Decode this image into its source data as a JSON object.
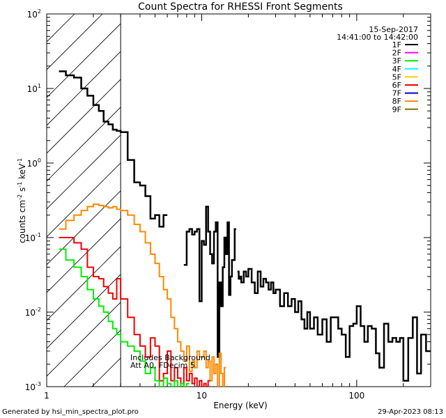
{
  "chart_data": {
    "type": "line",
    "title": "Count Spectra for RHESSI Front Segments",
    "xlabel": "Energy (keV)",
    "ylabel": "counts cm",
    "ylabel_sup1": "-2",
    "ylabel_mid": " s",
    "ylabel_sup2": "-1",
    "ylabel_end": " keV",
    "ylabel_sup3": "-1",
    "xscale": "log",
    "yscale": "log",
    "xlim": [
      1,
      300
    ],
    "ylim": [
      0.001,
      100
    ],
    "x_ticks": [
      {
        "value": 1,
        "label": "1"
      },
      {
        "value": 10,
        "label": "10"
      },
      {
        "value": 100,
        "label": "100"
      }
    ],
    "y_ticks": [
      {
        "value": 0.001,
        "base": "10",
        "exp": "-3"
      },
      {
        "value": 0.01,
        "base": "10",
        "exp": "-2"
      },
      {
        "value": 0.1,
        "base": "10",
        "exp": "-1"
      },
      {
        "value": 1,
        "base": "10",
        "exp": "0"
      },
      {
        "value": 10,
        "base": "10",
        "exp": "1"
      },
      {
        "value": 100,
        "base": "10",
        "exp": "2"
      }
    ],
    "date": "15-Sep-2017",
    "time_range": "14:41:00 to 14:42:00",
    "hatched_region": [
      1,
      3
    ],
    "annotation_lines": [
      "Includes Background",
      "Att A0, FDecim 5"
    ],
    "legend": [
      {
        "name": "1F",
        "color": "#000000"
      },
      {
        "name": "2F",
        "color": "#ff00ff"
      },
      {
        "name": "3F",
        "color": "#00ee00"
      },
      {
        "name": "4F",
        "color": "#00ffff"
      },
      {
        "name": "5F",
        "color": "#ffcc00"
      },
      {
        "name": "6F",
        "color": "#ee0000"
      },
      {
        "name": "7F",
        "color": "#0000dd"
      },
      {
        "name": "8F",
        "color": "#ff8800"
      },
      {
        "name": "9F",
        "color": "#777700"
      }
    ],
    "series": [
      {
        "name": "1F",
        "color": "#000000",
        "width": 2.5,
        "steps": [
          [
            1.2,
            1.33,
            17
          ],
          [
            1.33,
            1.5,
            15
          ],
          [
            1.5,
            1.67,
            14
          ],
          [
            1.67,
            1.83,
            10
          ],
          [
            1.83,
            2.0,
            8
          ],
          [
            2.0,
            2.17,
            6
          ],
          [
            2.17,
            2.33,
            5
          ],
          [
            2.33,
            2.5,
            3.6
          ],
          [
            2.5,
            2.67,
            3.3
          ],
          [
            2.67,
            2.83,
            2.8
          ],
          [
            2.83,
            3.0,
            2.7
          ],
          [
            3.0,
            3.33,
            2.6
          ],
          [
            3.33,
            3.67,
            1.1
          ],
          [
            3.67,
            4.0,
            0.55
          ],
          [
            4.0,
            4.33,
            0.5
          ],
          [
            4.33,
            4.67,
            0.36
          ],
          [
            4.67,
            5.0,
            0.18
          ],
          [
            5.0,
            5.33,
            0.2
          ],
          [
            5.33,
            5.67,
            0.14
          ],
          [
            5.67,
            6.0,
            0.2
          ],
          [
            7.67,
            8.0,
            0.043
          ],
          [
            8.0,
            8.33,
            0.12
          ],
          [
            8.33,
            8.67,
            0.13
          ],
          [
            8.67,
            9.0,
            0.11
          ],
          [
            9.0,
            9.33,
            0.12
          ],
          [
            9.33,
            9.67,
            0.13
          ],
          [
            9.67,
            10.0,
            0.014
          ],
          [
            10.0,
            10.33,
            0.09
          ],
          [
            10.33,
            10.67,
            0.08
          ],
          [
            10.67,
            11.0,
            0.26
          ],
          [
            11.0,
            11.33,
            0.12
          ],
          [
            11.33,
            11.67,
            0.06
          ],
          [
            11.67,
            12.0,
            0.045
          ],
          [
            12.0,
            12.33,
            0.12
          ],
          [
            12.33,
            12.67,
            0.16
          ],
          [
            12.67,
            13.0,
            0.0025
          ],
          [
            13.0,
            13.33,
            0.025
          ],
          [
            13.33,
            13.67,
            0.012
          ],
          [
            13.67,
            14.0,
            0.04
          ],
          [
            14.0,
            14.33,
            0.1
          ],
          [
            14.33,
            14.67,
            0.06
          ],
          [
            14.67,
            15.0,
            0.16
          ],
          [
            15.0,
            15.33,
            0.017
          ],
          [
            15.33,
            15.67,
            0.03
          ],
          [
            15.67,
            16.0,
            0.05
          ],
          [
            16.0,
            16.33,
            0.05
          ],
          [
            16.33,
            16.67,
            0.13
          ],
          [
            17.0,
            17.33,
            0.035
          ],
          [
            17.33,
            17.67,
            0.028
          ],
          [
            17.67,
            18.0,
            0.03
          ],
          [
            18.0,
            18.67,
            0.025
          ],
          [
            18.67,
            19.33,
            0.035
          ],
          [
            19.33,
            20.0,
            0.03
          ],
          [
            20.0,
            21.0,
            0.038
          ],
          [
            21.0,
            22.0,
            0.025
          ],
          [
            22.0,
            23.0,
            0.018
          ],
          [
            23.0,
            24.0,
            0.035
          ],
          [
            24.0,
            25.0,
            0.022
          ],
          [
            25.0,
            26.0,
            0.028
          ],
          [
            26.0,
            27.0,
            0.025
          ],
          [
            27.0,
            28.0,
            0.02
          ],
          [
            28.0,
            29.0,
            0.025
          ],
          [
            29.0,
            30.0,
            0.018
          ],
          [
            30.0,
            32.0,
            0.02
          ],
          [
            32.0,
            34.0,
            0.012
          ],
          [
            34.0,
            36.0,
            0.018
          ],
          [
            36.0,
            38.0,
            0.012
          ],
          [
            38.0,
            40.0,
            0.015
          ],
          [
            40.0,
            42.0,
            0.01
          ],
          [
            42.0,
            44.0,
            0.014
          ],
          [
            44.0,
            46.0,
            0.008
          ],
          [
            46.0,
            48.0,
            0.006
          ],
          [
            48.0,
            50.0,
            0.01
          ],
          [
            50.0,
            53.0,
            0.006
          ],
          [
            53.0,
            56.0,
            0.0085
          ],
          [
            56.0,
            60.0,
            0.005
          ],
          [
            60.0,
            64.0,
            0.008
          ],
          [
            64.0,
            68.0,
            0.004
          ],
          [
            68.0,
            72.0,
            0.0085
          ],
          [
            72.0,
            76.0,
            0.0085
          ],
          [
            76.0,
            80.0,
            0.006
          ],
          [
            80.0,
            85.0,
            0.005
          ],
          [
            85.0,
            90.0,
            0.0025
          ],
          [
            90.0,
            95.0,
            0.0065
          ],
          [
            95.0,
            100.0,
            0.007
          ],
          [
            100.0,
            106.0,
            0.012
          ],
          [
            106.0,
            112.0,
            0.0065
          ],
          [
            112.0,
            118.0,
            0.004
          ],
          [
            118.0,
            125.0,
            0.0065
          ],
          [
            125.0,
            133.0,
            0.006
          ],
          [
            133.0,
            140.0,
            0.0028
          ],
          [
            140.0,
            150.0,
            0.0018
          ],
          [
            150.0,
            160.0,
            0.007
          ],
          [
            160.0,
            170.0,
            0.004
          ],
          [
            170.0,
            180.0,
            0.0045
          ],
          [
            180.0,
            190.0,
            0.004
          ],
          [
            190.0,
            200.0,
            0.0045
          ],
          [
            200.0,
            215.0,
            0.0012
          ],
          [
            215.0,
            230.0,
            0.0045
          ],
          [
            230.0,
            245.0,
            0.0085
          ],
          [
            245.0,
            260.0,
            0.0015
          ],
          [
            260.0,
            280.0,
            0.005
          ],
          [
            280.0,
            300.0,
            0.003
          ]
        ]
      },
      {
        "name": "8F",
        "color": "#ff8800",
        "width": 2,
        "steps": [
          [
            1.2,
            1.33,
            0.13
          ],
          [
            1.33,
            1.5,
            0.17
          ],
          [
            1.5,
            1.67,
            0.2
          ],
          [
            1.67,
            1.83,
            0.23
          ],
          [
            1.83,
            2.0,
            0.26
          ],
          [
            2.0,
            2.17,
            0.28
          ],
          [
            2.17,
            2.33,
            0.27
          ],
          [
            2.33,
            2.5,
            0.26
          ],
          [
            2.5,
            2.67,
            0.25
          ],
          [
            2.67,
            2.83,
            0.26
          ],
          [
            2.83,
            3.0,
            0.24
          ],
          [
            3.0,
            3.33,
            0.23
          ],
          [
            3.33,
            3.67,
            0.2
          ],
          [
            3.67,
            4.0,
            0.15
          ],
          [
            4.0,
            4.33,
            0.12
          ],
          [
            4.33,
            4.67,
            0.085
          ],
          [
            4.67,
            5.0,
            0.06
          ],
          [
            5.0,
            5.33,
            0.045
          ],
          [
            5.33,
            5.67,
            0.03
          ],
          [
            5.67,
            6.0,
            0.02
          ],
          [
            6.0,
            6.33,
            0.015
          ],
          [
            6.33,
            6.67,
            0.0085
          ],
          [
            6.67,
            7.0,
            0.006
          ],
          [
            7.0,
            7.33,
            0.004
          ],
          [
            7.33,
            7.67,
            0.003
          ],
          [
            7.67,
            8.0,
            0.0022
          ],
          [
            8.0,
            8.33,
            0.0035
          ],
          [
            8.33,
            8.67,
            0.0016
          ],
          [
            8.67,
            9.0,
            0.0022
          ],
          [
            9.0,
            9.33,
            0.0018
          ],
          [
            9.33,
            9.67,
            0.003
          ],
          [
            9.67,
            10.0,
            0.0025
          ],
          [
            10.0,
            10.33,
            0.0025
          ],
          [
            10.33,
            10.67,
            0.003
          ],
          [
            10.67,
            11.0,
            0.0018
          ],
          [
            11.0,
            11.33,
            0.0022
          ],
          [
            11.33,
            11.67,
            0.0012
          ],
          [
            11.67,
            12.0,
            0.0025
          ],
          [
            12.0,
            12.33,
            0.0015
          ],
          [
            12.33,
            12.67,
            0.002
          ],
          [
            12.67,
            13.0,
            0.001
          ],
          [
            13.0,
            13.33,
            0.0028
          ],
          [
            13.33,
            13.67,
            0.0015
          ],
          [
            13.67,
            14.0,
            0.001
          ],
          [
            14.0,
            14.33,
            0.0018
          ]
        ]
      },
      {
        "name": "6F",
        "color": "#ee0000",
        "width": 2,
        "steps": [
          [
            1.2,
            1.33,
            0.1
          ],
          [
            1.33,
            1.5,
            0.1
          ],
          [
            1.5,
            1.67,
            0.085
          ],
          [
            1.67,
            1.83,
            0.07
          ],
          [
            1.83,
            2.0,
            0.04
          ],
          [
            2.0,
            2.17,
            0.03
          ],
          [
            2.17,
            2.33,
            0.028
          ],
          [
            2.33,
            2.5,
            0.022
          ],
          [
            2.5,
            2.67,
            0.018
          ],
          [
            2.67,
            2.83,
            0.015
          ],
          [
            2.83,
            3.0,
            0.028
          ],
          [
            3.0,
            3.33,
            0.015
          ],
          [
            3.33,
            3.67,
            0.0085
          ],
          [
            3.67,
            4.0,
            0.005
          ],
          [
            4.0,
            4.33,
            0.0035
          ],
          [
            4.33,
            4.67,
            0.0025
          ],
          [
            4.67,
            5.0,
            0.0045
          ],
          [
            5.0,
            5.33,
            0.0035
          ],
          [
            5.33,
            5.67,
            0.0012
          ],
          [
            5.67,
            6.0,
            0.0015
          ],
          [
            6.0,
            6.33,
            0.003
          ],
          [
            6.33,
            6.67,
            0.0012
          ],
          [
            6.67,
            7.0,
            0.0018
          ],
          [
            7.0,
            7.33,
            0.0013
          ],
          [
            7.33,
            7.67,
            0.001
          ],
          [
            7.67,
            8.0,
            0.0018
          ],
          [
            8.0,
            8.33,
            0.0012
          ],
          [
            8.33,
            8.67,
            0.0015
          ],
          [
            8.67,
            9.0,
            0.0011
          ],
          [
            9.0,
            9.33,
            0.0013
          ],
          [
            9.33,
            9.67,
            0.001
          ],
          [
            9.67,
            10.0,
            0.0012
          ],
          [
            10.0,
            10.33,
            0.001
          ],
          [
            10.33,
            10.67,
            0.0011
          ],
          [
            10.67,
            11.0,
            0.001
          ],
          [
            11.0,
            11.33,
            0.0012
          ]
        ]
      },
      {
        "name": "3F",
        "color": "#00ee00",
        "width": 2,
        "steps": [
          [
            1.2,
            1.33,
            0.07
          ],
          [
            1.33,
            1.5,
            0.05
          ],
          [
            1.5,
            1.67,
            0.04
          ],
          [
            1.67,
            1.83,
            0.03
          ],
          [
            1.83,
            2.0,
            0.02
          ],
          [
            2.0,
            2.17,
            0.015
          ],
          [
            2.17,
            2.33,
            0.012
          ],
          [
            2.33,
            2.5,
            0.01
          ],
          [
            2.5,
            2.67,
            0.0075
          ],
          [
            2.67,
            2.83,
            0.006
          ],
          [
            2.83,
            3.0,
            0.005
          ],
          [
            3.0,
            3.33,
            0.004
          ],
          [
            3.33,
            3.67,
            0.0035
          ],
          [
            3.67,
            4.0,
            0.003
          ],
          [
            4.0,
            4.33,
            0.0022
          ],
          [
            4.33,
            4.67,
            0.0015
          ],
          [
            4.67,
            5.0,
            0.0018
          ],
          [
            5.0,
            5.33,
            0.0012
          ],
          [
            5.33,
            5.67,
            0.001
          ],
          [
            5.67,
            6.0,
            0.0013
          ],
          [
            6.0,
            6.33,
            0.0011
          ],
          [
            6.33,
            6.67,
            0.001
          ],
          [
            6.67,
            7.0,
            0.0012
          ],
          [
            7.0,
            7.33,
            0.001
          ],
          [
            7.33,
            7.67,
            0.0011
          ],
          [
            7.67,
            8.0,
            0.001
          ],
          [
            8.0,
            8.33,
            0.0011
          ]
        ]
      }
    ]
  },
  "footer": {
    "generated_by": "Generated by hsi_min_spectra_plot.pro",
    "timestamp": "29-Apr-2023 08:13"
  }
}
